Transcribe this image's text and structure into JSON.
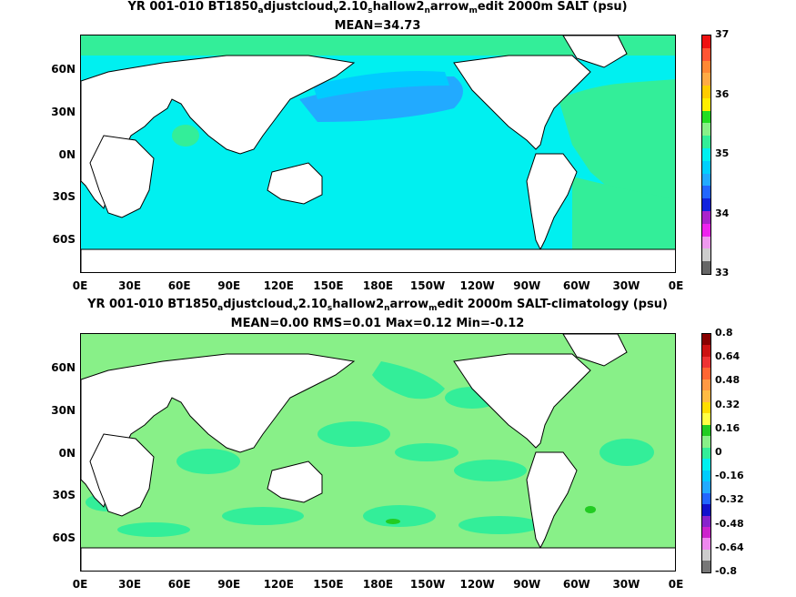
{
  "panels": [
    {
      "title_parts": [
        "YR 001-010 BT1850",
        "a",
        "djustcloud",
        "v",
        "2.10",
        "s",
        "hallow2",
        "n",
        "arrow",
        "m",
        "edit 2000m SALT (psu)"
      ],
      "stats": "MEAN=34.73",
      "colorbar": {
        "labels": [
          "37",
          "36",
          "35",
          "34",
          "33"
        ],
        "colors": [
          "#ee1111",
          "#ff5533",
          "#ff8833",
          "#ffaa44",
          "#ffcc00",
          "#ffee00",
          "#22dd22",
          "#88f088",
          "#33ee99",
          "#00f0f0",
          "#00d0ff",
          "#22aaff",
          "#2266ff",
          "#1122dd",
          "#aa22cc",
          "#ee22ee",
          "#ee99ee",
          "#cccccc",
          "#666666"
        ]
      },
      "map_fill": "#00f0f0"
    },
    {
      "title_parts": [
        "YR 001-010 BT1850",
        "a",
        "djustcloud",
        "v",
        "2.10",
        "s",
        "hallow2",
        "n",
        "arrow",
        "m",
        "edit 2000m SALT-climatology (psu)"
      ],
      "stats": "MEAN=0.00   RMS=0.01   Max=0.12   Min=-0.12",
      "colorbar": {
        "labels": [
          "0.8",
          "0.64",
          "0.48",
          "0.32",
          "0.16",
          "0",
          "-0.16",
          "-0.32",
          "-0.48",
          "-0.64",
          "-0.8"
        ],
        "colors": [
          "#880000",
          "#cc1111",
          "#ee3333",
          "#ff6633",
          "#ff9944",
          "#ffbb44",
          "#ffdd00",
          "#ffff44",
          "#22cc22",
          "#88f088",
          "#33ee99",
          "#00f0f0",
          "#00ccff",
          "#22aaff",
          "#2266ff",
          "#1111cc",
          "#8822cc",
          "#cc22cc",
          "#ee88ee",
          "#cccccc",
          "#777777"
        ]
      },
      "map_fill": "#88f088"
    }
  ],
  "axes": {
    "y_ticks": [
      "60N",
      "30N",
      "0N",
      "30S",
      "60S"
    ],
    "x_ticks": [
      "0E",
      "30E",
      "60E",
      "90E",
      "120E",
      "150E",
      "180E",
      "150W",
      "120W",
      "90W",
      "60W",
      "30W",
      "0E"
    ]
  }
}
